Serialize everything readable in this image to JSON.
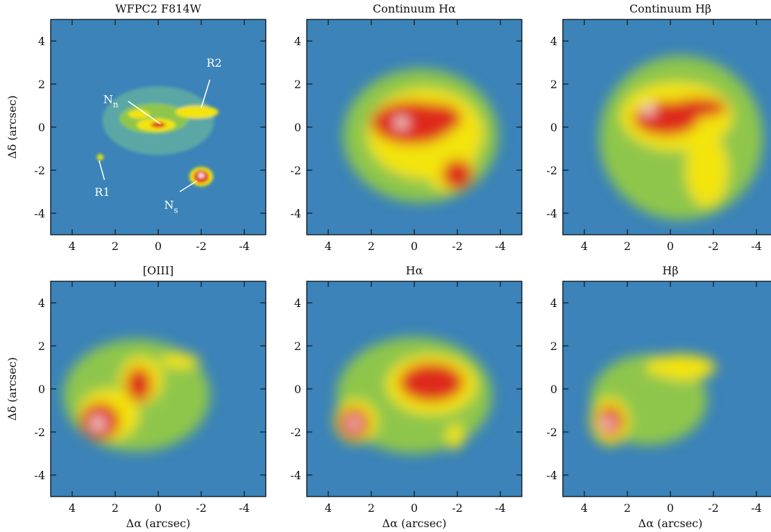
{
  "figure": {
    "panels": [
      {
        "title": "WFPC2 F814W"
      },
      {
        "title": "Continuum Hα"
      },
      {
        "title": "Continuum Hβ"
      },
      {
        "title": "[OIII]"
      },
      {
        "title": "Hα"
      },
      {
        "title": "Hβ"
      }
    ],
    "xlabel": "Δα (arcsec)",
    "ylabel": "Δδ (arcsec)",
    "xlim": [
      5,
      -5
    ],
    "ylim": [
      -5,
      5
    ],
    "xticks": [
      4,
      2,
      0,
      -2,
      -4
    ],
    "yticks": [
      -4,
      -2,
      0,
      2,
      4
    ],
    "annotations": [
      {
        "label": "N",
        "sub": "n"
      },
      {
        "label": "R2"
      },
      {
        "label": "R1"
      },
      {
        "label": "N",
        "sub": "s"
      }
    ]
  }
}
